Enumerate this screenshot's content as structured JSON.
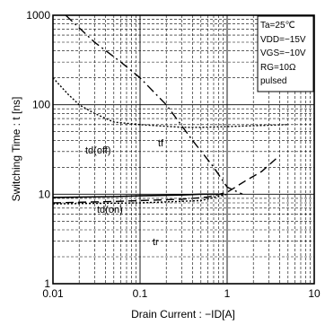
{
  "chart_data": {
    "type": "line",
    "xlabel": "Drain Current : −ID[A]",
    "ylabel": "Switching Time : t [ns]",
    "x_scale": "log",
    "y_scale": "log",
    "xlim": [
      0.01,
      10
    ],
    "ylim": [
      1,
      1000
    ],
    "x_ticks": [
      {
        "value": 0.01,
        "label": "0.01"
      },
      {
        "value": 0.1,
        "label": "0.1"
      },
      {
        "value": 1,
        "label": "1"
      },
      {
        "value": 10,
        "label": "10"
      }
    ],
    "y_ticks": [
      {
        "value": 1,
        "label": "1"
      },
      {
        "value": 10,
        "label": "10"
      },
      {
        "value": 100,
        "label": "100"
      },
      {
        "value": 1000,
        "label": "1000"
      }
    ],
    "grid": true,
    "conditions": [
      "Ta=25℃",
      "VDD=−15V",
      "VGS=−10V",
      "RG=10Ω",
      "pulsed"
    ],
    "series": [
      {
        "name": "tf",
        "style": "dash-dot",
        "points": [
          [
            0.014,
            1000
          ],
          [
            0.03,
            500
          ],
          [
            0.06,
            300
          ],
          [
            0.1,
            200
          ],
          [
            0.2,
            100
          ],
          [
            0.4,
            40
          ],
          [
            0.7,
            20
          ],
          [
            1.0,
            12
          ],
          [
            1.5,
            10
          ]
        ]
      },
      {
        "name": "td(off)",
        "style": "dotted",
        "points": [
          [
            0.01,
            200
          ],
          [
            0.015,
            130
          ],
          [
            0.02,
            100
          ],
          [
            0.03,
            80
          ],
          [
            0.05,
            64
          ],
          [
            0.1,
            60
          ],
          [
            0.3,
            56
          ],
          [
            0.5,
            56
          ],
          [
            1.0,
            57
          ],
          [
            3.0,
            59
          ],
          [
            5.0,
            60
          ]
        ]
      },
      {
        "name": "td(on)",
        "style": "solid",
        "points": [
          [
            0.01,
            9.2
          ],
          [
            0.05,
            9.4
          ],
          [
            0.1,
            9.6
          ],
          [
            0.3,
            9.8
          ],
          [
            0.5,
            10
          ],
          [
            0.9,
            10
          ]
        ]
      },
      {
        "name": "tr",
        "style": "dashed",
        "points": [
          [
            0.01,
            8.0
          ],
          [
            0.05,
            8.3
          ],
          [
            0.1,
            8.5
          ],
          [
            0.3,
            8.8
          ],
          [
            0.6,
            9.3
          ],
          [
            1.0,
            10.5
          ],
          [
            1.6,
            14
          ],
          [
            2.5,
            18
          ],
          [
            4.0,
            27
          ]
        ]
      },
      {
        "name": "",
        "style": "dotted",
        "points": [
          [
            0.01,
            7.8
          ],
          [
            0.1,
            8.0
          ],
          [
            0.5,
            8.5
          ],
          [
            1.0,
            10
          ]
        ]
      }
    ]
  }
}
